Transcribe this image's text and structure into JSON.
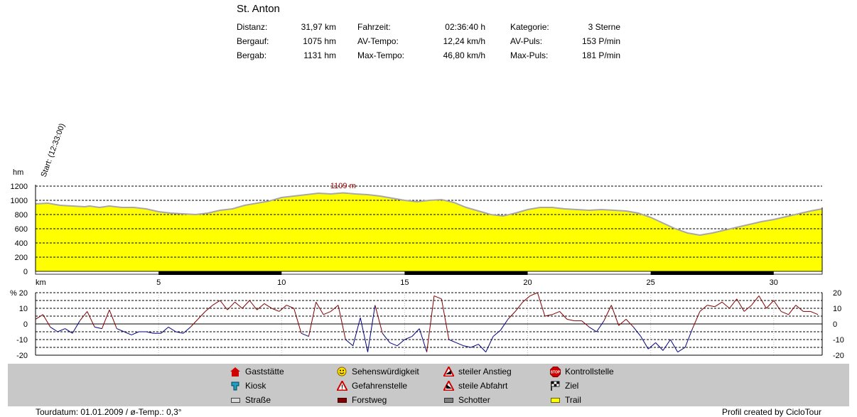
{
  "header": {
    "title": "St. Anton",
    "stats": [
      {
        "label": "Distanz:",
        "value": "31,97 km"
      },
      {
        "label": "Bergauf:",
        "value": "1075 hm"
      },
      {
        "label": "Bergab:",
        "value": "1131 hm"
      },
      {
        "label": "Fahrzeit:",
        "value": "02:36:40 h"
      },
      {
        "label": "AV-Tempo:",
        "value": "12,24 km/h"
      },
      {
        "label": "Max-Tempo:",
        "value": "46,80 km/h"
      },
      {
        "label": "Kategorie:",
        "value": "3 Sterne"
      },
      {
        "label": "AV-Puls:",
        "value": "153 P/min"
      },
      {
        "label": "Max-Puls:",
        "value": "181 P/min"
      }
    ]
  },
  "legend": [
    {
      "label": "Gaststätte",
      "icon": "house-icon"
    },
    {
      "label": "Kiosk",
      "icon": "kiosk-icon"
    },
    {
      "label": "Straße",
      "icon": "road-swatch",
      "color": "#d8d8d8"
    },
    {
      "label": "Sehenswürdigkeit",
      "icon": "smiley-icon"
    },
    {
      "label": "Gefahrenstelle",
      "icon": "danger-icon"
    },
    {
      "label": "Forstweg",
      "icon": "forest-road-swatch",
      "color": "#800000"
    },
    {
      "label": "steiler Anstieg",
      "icon": "steep-climb-icon"
    },
    {
      "label": "steile Abfahrt",
      "icon": "steep-descent-icon"
    },
    {
      "label": "Schotter",
      "icon": "gravel-swatch",
      "color": "#808080"
    },
    {
      "label": "Kontrollstelle",
      "icon": "stop-icon"
    },
    {
      "label": "Ziel",
      "icon": "finish-flag-icon"
    },
    {
      "label": "Trail",
      "icon": "trail-swatch",
      "color": "#ffff00"
    }
  ],
  "footer": {
    "left": "Tourdatum: 01.01.2009  /  ø-Temp.: 0,3°",
    "right": "Profil created by CicloTour"
  },
  "colors": {
    "profile_fill": "#ffff00",
    "profile_line": "#a8a8a8",
    "slope_up": "#800000",
    "slope_down": "#000080",
    "legend_bg": "#c8c8c8"
  },
  "chart_data": [
    {
      "type": "area",
      "xlabel": "km",
      "ylabel": "hm",
      "x_ticks": [
        5,
        10,
        15,
        20,
        25,
        30
      ],
      "xlim": [
        0,
        31.97
      ],
      "y_ticks": [
        0,
        200,
        400,
        600,
        800,
        1000,
        1200
      ],
      "ylim": [
        0,
        1200
      ],
      "grid": true,
      "annotations": [
        {
          "text": "Start: (12:33:00)",
          "x": 0
        },
        {
          "text": "1109 m",
          "x": 12.5
        }
      ],
      "series": [
        {
          "x": [
            0,
            0.5,
            1,
            1.5,
            2,
            2.2,
            2.6,
            3,
            3.5,
            4,
            4.5,
            5,
            5.5,
            6,
            6.5,
            7,
            7.5,
            8,
            8.5,
            9,
            9.5,
            10,
            10.5,
            11,
            11.5,
            12,
            12.5,
            13,
            13.5,
            14,
            14.5,
            15,
            15.5,
            16,
            16.5,
            17,
            17.5,
            18,
            18.5,
            19,
            19.5,
            20,
            20.5,
            21,
            21.5,
            22,
            22.5,
            23,
            23.5,
            24,
            24.5,
            25,
            25.5,
            26,
            26.5,
            27,
            27.5,
            28,
            28.5,
            29,
            29.5,
            30,
            30.5,
            31,
            31.5,
            31.97
          ],
          "y": [
            950,
            960,
            930,
            920,
            910,
            920,
            900,
            920,
            900,
            900,
            880,
            840,
            820,
            810,
            800,
            820,
            860,
            880,
            930,
            960,
            990,
            1040,
            1060,
            1080,
            1100,
            1090,
            1105,
            1090,
            1080,
            1060,
            1030,
            1000,
            980,
            1000,
            1010,
            970,
            900,
            850,
            800,
            780,
            820,
            870,
            900,
            900,
            880,
            870,
            860,
            870,
            860,
            850,
            820,
            760,
            680,
            600,
            540,
            510,
            540,
            580,
            620,
            660,
            700,
            730,
            770,
            810,
            850,
            880
          ]
        }
      ]
    },
    {
      "type": "line",
      "xlabel": "km",
      "ylabel": "%",
      "x_ticks": [
        5,
        10,
        15,
        20,
        25,
        30
      ],
      "xlim": [
        0,
        31.97
      ],
      "y_ticks": [
        -20,
        -10,
        0,
        10,
        20
      ],
      "ylim": [
        -20,
        20
      ],
      "grid": true,
      "series": [
        {
          "x": [
            0,
            0.3,
            0.6,
            0.9,
            1.2,
            1.5,
            1.8,
            2.1,
            2.4,
            2.7,
            3,
            3.3,
            3.6,
            3.9,
            4.2,
            4.5,
            4.8,
            5.1,
            5.4,
            5.7,
            6,
            6.3,
            6.6,
            6.9,
            7.2,
            7.5,
            7.8,
            8.1,
            8.4,
            8.7,
            9,
            9.3,
            9.6,
            9.9,
            10.2,
            10.5,
            10.8,
            11.1,
            11.4,
            11.7,
            12,
            12.3,
            12.6,
            12.9,
            13.2,
            13.5,
            13.8,
            14.1,
            14.4,
            14.7,
            15,
            15.3,
            15.6,
            15.9,
            16.2,
            16.5,
            16.8,
            17.1,
            17.4,
            17.7,
            18,
            18.3,
            18.6,
            18.9,
            19.2,
            19.5,
            19.8,
            20.1,
            20.4,
            20.7,
            21,
            21.3,
            21.6,
            21.9,
            22.2,
            22.5,
            22.8,
            23.1,
            23.4,
            23.7,
            24,
            24.3,
            24.6,
            24.9,
            25.2,
            25.5,
            25.8,
            26.1,
            26.4,
            26.7,
            27,
            27.3,
            27.6,
            27.9,
            28.2,
            28.5,
            28.8,
            29.1,
            29.4,
            29.7,
            30,
            30.3,
            30.6,
            30.9,
            31.2,
            31.5,
            31.8
          ],
          "y": [
            3,
            6,
            -2,
            -5,
            -3,
            -6,
            2,
            8,
            -2,
            -3,
            9,
            -3,
            -5,
            -7,
            -5,
            -5,
            -6,
            -6,
            -2,
            -5,
            -6,
            -2,
            3,
            8,
            12,
            15,
            9,
            14,
            10,
            15,
            9,
            13,
            10,
            8,
            12,
            10,
            -6,
            -8,
            14,
            6,
            8,
            12,
            -10,
            -14,
            4,
            -18,
            12,
            -6,
            -12,
            -14,
            -10,
            -8,
            -3,
            -18,
            18,
            16,
            -10,
            -12,
            -14,
            -15,
            -13,
            -18,
            -8,
            -4,
            3,
            8,
            14,
            18,
            20,
            5,
            6,
            8,
            3,
            2,
            2,
            -2,
            -5,
            2,
            12,
            -1,
            3,
            -2,
            -8,
            -16,
            -12,
            -17,
            -10,
            -18,
            -15,
            -3,
            8,
            12,
            11,
            14,
            10,
            16,
            8,
            12,
            18,
            10,
            15,
            8,
            6,
            12,
            8,
            8,
            6
          ]
        }
      ]
    }
  ]
}
